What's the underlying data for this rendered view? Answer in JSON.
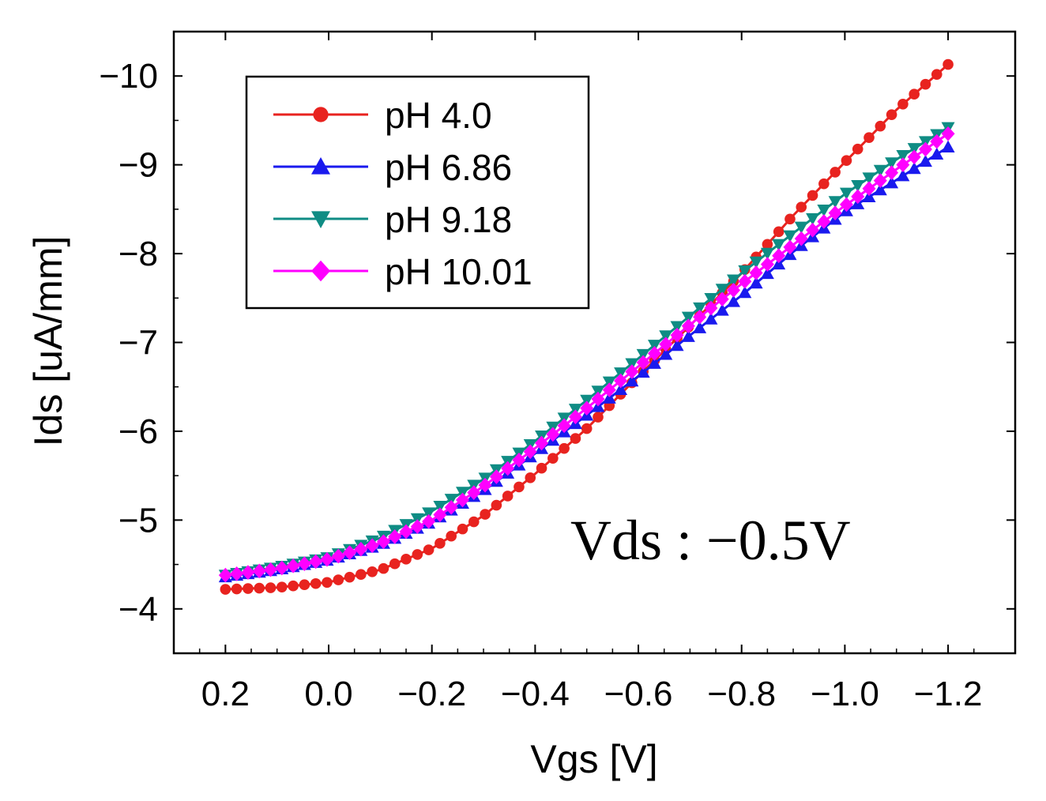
{
  "chart_data": {
    "type": "line",
    "xlabel": "Vgs [V]",
    "ylabel": "Ids [uA/mm]",
    "xlim": [
      0.3,
      -1.33
    ],
    "ylim": [
      -3.5,
      -10.5
    ],
    "x_ticks": [
      0.2,
      0.0,
      -0.2,
      -0.4,
      -0.6,
      -0.8,
      -1.0,
      -1.2
    ],
    "x_tick_labels": [
      "0.2",
      "0.0",
      "−0.2",
      "−0.4",
      "−0.6",
      "−0.8",
      "−1.0",
      "−1.2"
    ],
    "y_ticks": [
      -4,
      -5,
      -6,
      -7,
      -8,
      -9,
      -10
    ],
    "y_tick_labels": [
      "−4",
      "−5",
      "−6",
      "−7",
      "−8",
      "−9",
      "−10"
    ],
    "annotation": "Vds : −0.5V",
    "legend_position": "top-left",
    "x": [
      0.2,
      0.1,
      0.0,
      -0.1,
      -0.2,
      -0.3,
      -0.4,
      -0.5,
      -0.6,
      -0.7,
      -0.8,
      -0.9,
      -1.0,
      -1.1,
      -1.2
    ],
    "series": [
      {
        "name": "pH 4.0",
        "color": "#e8231f",
        "marker": "circle",
        "values": [
          -4.22,
          -4.24,
          -4.3,
          -4.44,
          -4.68,
          -5.05,
          -5.52,
          -6.03,
          -6.62,
          -7.19,
          -7.78,
          -8.43,
          -9.03,
          -9.62,
          -10.13
        ]
      },
      {
        "name": "pH 6.86",
        "color": "#1a1aee",
        "marker": "triangle-up",
        "values": [
          -4.36,
          -4.44,
          -4.55,
          -4.72,
          -4.98,
          -5.33,
          -5.75,
          -6.18,
          -6.62,
          -7.08,
          -7.53,
          -8.02,
          -8.47,
          -8.83,
          -9.2
        ]
      },
      {
        "name": "pH 9.18",
        "color": "#0f8c84",
        "marker": "triangle-down",
        "values": [
          -4.38,
          -4.47,
          -4.58,
          -4.8,
          -5.1,
          -5.46,
          -5.89,
          -6.35,
          -6.82,
          -7.3,
          -7.78,
          -8.23,
          -8.67,
          -9.06,
          -9.42
        ]
      },
      {
        "name": "pH 10.01",
        "color": "#ff00ff",
        "marker": "diamond",
        "values": [
          -4.38,
          -4.45,
          -4.56,
          -4.74,
          -5.0,
          -5.38,
          -5.81,
          -6.26,
          -6.73,
          -7.2,
          -7.66,
          -8.1,
          -8.54,
          -8.95,
          -9.35
        ]
      }
    ]
  }
}
